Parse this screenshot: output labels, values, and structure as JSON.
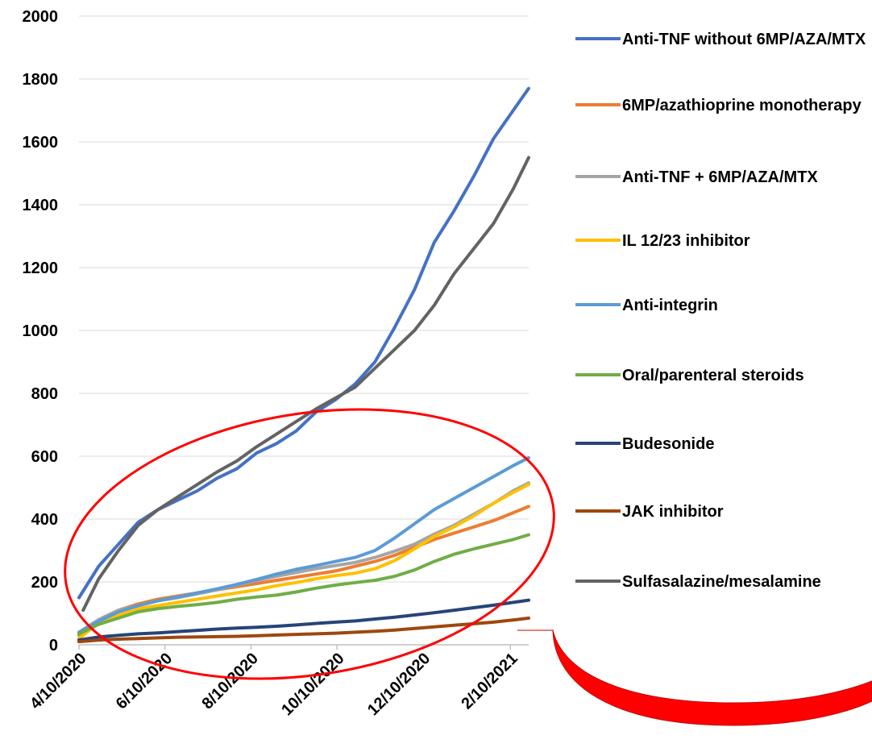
{
  "chart_data": {
    "type": "line",
    "title": "",
    "xlabel": "",
    "ylabel": "",
    "x_start": "2020-04-10",
    "x_end": "2021-02-23",
    "x_ticks": [
      "4/10/2020",
      "6/10/2020",
      "8/10/2020",
      "10/10/2020",
      "12/10/2020",
      "2/10/2021"
    ],
    "x_tick_dates": [
      "2020-04-10",
      "2020-06-10",
      "2020-08-10",
      "2020-10-10",
      "2020-12-10",
      "2021-02-10"
    ],
    "ylim": [
      0,
      2000
    ],
    "y_ticks": [
      "0",
      "200",
      "400",
      "600",
      "800",
      "1000",
      "1200",
      "1400",
      "1600",
      "1800",
      "2000"
    ],
    "y_tick_values": [
      0,
      200,
      400,
      600,
      800,
      1000,
      1200,
      1400,
      1600,
      1800,
      2000
    ],
    "grid": "horizontal",
    "legend_position": "right",
    "series": [
      {
        "name": "Anti-TNF without 6MP/AZA/MTX",
        "color": "#4472c4",
        "points": [
          [
            "2020-04-10",
            150
          ],
          [
            "2020-04-24",
            250
          ],
          [
            "2020-05-08",
            320
          ],
          [
            "2020-05-22",
            390
          ],
          [
            "2020-06-05",
            430
          ],
          [
            "2020-06-19",
            460
          ],
          [
            "2020-07-03",
            490
          ],
          [
            "2020-07-17",
            530
          ],
          [
            "2020-07-31",
            560
          ],
          [
            "2020-08-14",
            610
          ],
          [
            "2020-08-28",
            640
          ],
          [
            "2020-09-11",
            680
          ],
          [
            "2020-09-25",
            740
          ],
          [
            "2020-10-09",
            780
          ],
          [
            "2020-10-23",
            830
          ],
          [
            "2020-11-06",
            900
          ],
          [
            "2020-11-20",
            1010
          ],
          [
            "2020-12-04",
            1130
          ],
          [
            "2020-12-18",
            1280
          ],
          [
            "2021-01-01",
            1380
          ],
          [
            "2021-01-15",
            1490
          ],
          [
            "2021-01-29",
            1610
          ],
          [
            "2021-02-12",
            1700
          ],
          [
            "2021-02-23",
            1770
          ]
        ]
      },
      {
        "name": "6MP/azathioprine monotherapy",
        "color": "#ed7d31",
        "points": [
          [
            "2020-04-10",
            30
          ],
          [
            "2020-04-24",
            80
          ],
          [
            "2020-05-08",
            110
          ],
          [
            "2020-05-22",
            130
          ],
          [
            "2020-06-05",
            145
          ],
          [
            "2020-06-19",
            155
          ],
          [
            "2020-07-03",
            165
          ],
          [
            "2020-07-17",
            175
          ],
          [
            "2020-07-31",
            185
          ],
          [
            "2020-08-14",
            195
          ],
          [
            "2020-08-28",
            205
          ],
          [
            "2020-09-11",
            215
          ],
          [
            "2020-09-25",
            225
          ],
          [
            "2020-10-09",
            235
          ],
          [
            "2020-10-23",
            250
          ],
          [
            "2020-11-06",
            265
          ],
          [
            "2020-11-20",
            285
          ],
          [
            "2020-12-04",
            310
          ],
          [
            "2020-12-18",
            335
          ],
          [
            "2021-01-01",
            355
          ],
          [
            "2021-01-15",
            375
          ],
          [
            "2021-01-29",
            395
          ],
          [
            "2021-02-12",
            420
          ],
          [
            "2021-02-23",
            440
          ]
        ]
      },
      {
        "name": "Anti-TNF + 6MP/AZA/MTX",
        "color": "#a5a5a5",
        "points": [
          [
            "2020-04-10",
            40
          ],
          [
            "2020-04-24",
            80
          ],
          [
            "2020-05-08",
            110
          ],
          [
            "2020-05-22",
            125
          ],
          [
            "2020-06-05",
            140
          ],
          [
            "2020-06-19",
            150
          ],
          [
            "2020-07-03",
            162
          ],
          [
            "2020-07-17",
            175
          ],
          [
            "2020-07-31",
            190
          ],
          [
            "2020-08-14",
            205
          ],
          [
            "2020-08-28",
            218
          ],
          [
            "2020-09-11",
            230
          ],
          [
            "2020-09-25",
            242
          ],
          [
            "2020-10-09",
            252
          ],
          [
            "2020-10-23",
            262
          ],
          [
            "2020-11-06",
            278
          ],
          [
            "2020-11-20",
            298
          ],
          [
            "2020-12-04",
            320
          ],
          [
            "2020-12-18",
            352
          ],
          [
            "2021-01-01",
            380
          ],
          [
            "2021-01-15",
            415
          ],
          [
            "2021-01-29",
            450
          ],
          [
            "2021-02-12",
            490
          ],
          [
            "2021-02-23",
            515
          ]
        ]
      },
      {
        "name": "IL 12/23 inhibitor",
        "color": "#ffc000",
        "points": [
          [
            "2020-04-10",
            20
          ],
          [
            "2020-04-24",
            70
          ],
          [
            "2020-05-08",
            95
          ],
          [
            "2020-05-22",
            115
          ],
          [
            "2020-06-05",
            125
          ],
          [
            "2020-06-19",
            135
          ],
          [
            "2020-07-03",
            145
          ],
          [
            "2020-07-17",
            155
          ],
          [
            "2020-07-31",
            165
          ],
          [
            "2020-08-14",
            175
          ],
          [
            "2020-08-28",
            188
          ],
          [
            "2020-09-11",
            198
          ],
          [
            "2020-09-25",
            210
          ],
          [
            "2020-10-09",
            220
          ],
          [
            "2020-10-23",
            228
          ],
          [
            "2020-11-06",
            242
          ],
          [
            "2020-11-20",
            268
          ],
          [
            "2020-12-04",
            305
          ],
          [
            "2020-12-18",
            345
          ],
          [
            "2021-01-01",
            375
          ],
          [
            "2021-01-15",
            410
          ],
          [
            "2021-01-29",
            450
          ],
          [
            "2021-02-12",
            485
          ],
          [
            "2021-02-23",
            510
          ]
        ]
      },
      {
        "name": "Anti-integrin",
        "color": "#5b9bd5",
        "points": [
          [
            "2020-04-10",
            40
          ],
          [
            "2020-04-24",
            75
          ],
          [
            "2020-05-08",
            105
          ],
          [
            "2020-05-22",
            125
          ],
          [
            "2020-06-05",
            140
          ],
          [
            "2020-06-19",
            152
          ],
          [
            "2020-07-03",
            165
          ],
          [
            "2020-07-17",
            178
          ],
          [
            "2020-07-31",
            192
          ],
          [
            "2020-08-14",
            208
          ],
          [
            "2020-08-28",
            225
          ],
          [
            "2020-09-11",
            240
          ],
          [
            "2020-09-25",
            252
          ],
          [
            "2020-10-09",
            265
          ],
          [
            "2020-10-23",
            278
          ],
          [
            "2020-11-06",
            300
          ],
          [
            "2020-11-20",
            340
          ],
          [
            "2020-12-04",
            385
          ],
          [
            "2020-12-18",
            430
          ],
          [
            "2021-01-01",
            465
          ],
          [
            "2021-01-15",
            500
          ],
          [
            "2021-01-29",
            535
          ],
          [
            "2021-02-12",
            570
          ],
          [
            "2021-02-23",
            595
          ]
        ]
      },
      {
        "name": "Oral/parenteral steroids",
        "color": "#70ad47",
        "points": [
          [
            "2020-04-10",
            35
          ],
          [
            "2020-04-24",
            65
          ],
          [
            "2020-05-08",
            85
          ],
          [
            "2020-05-22",
            105
          ],
          [
            "2020-06-05",
            115
          ],
          [
            "2020-06-19",
            122
          ],
          [
            "2020-07-03",
            128
          ],
          [
            "2020-07-17",
            135
          ],
          [
            "2020-07-31",
            145
          ],
          [
            "2020-08-14",
            152
          ],
          [
            "2020-08-28",
            158
          ],
          [
            "2020-09-11",
            168
          ],
          [
            "2020-09-25",
            180
          ],
          [
            "2020-10-09",
            190
          ],
          [
            "2020-10-23",
            198
          ],
          [
            "2020-11-06",
            205
          ],
          [
            "2020-11-20",
            218
          ],
          [
            "2020-12-04",
            238
          ],
          [
            "2020-12-18",
            265
          ],
          [
            "2021-01-01",
            288
          ],
          [
            "2021-01-15",
            305
          ],
          [
            "2021-01-29",
            320
          ],
          [
            "2021-02-12",
            335
          ],
          [
            "2021-02-23",
            350
          ]
        ]
      },
      {
        "name": "Budesonide",
        "color": "#264478",
        "points": [
          [
            "2020-04-10",
            15
          ],
          [
            "2020-04-24",
            25
          ],
          [
            "2020-05-08",
            30
          ],
          [
            "2020-05-22",
            35
          ],
          [
            "2020-06-05",
            38
          ],
          [
            "2020-06-19",
            42
          ],
          [
            "2020-07-03",
            46
          ],
          [
            "2020-07-17",
            50
          ],
          [
            "2020-07-31",
            53
          ],
          [
            "2020-08-14",
            56
          ],
          [
            "2020-08-28",
            59
          ],
          [
            "2020-09-11",
            63
          ],
          [
            "2020-09-25",
            68
          ],
          [
            "2020-10-09",
            72
          ],
          [
            "2020-10-23",
            76
          ],
          [
            "2020-11-06",
            82
          ],
          [
            "2020-11-20",
            88
          ],
          [
            "2020-12-04",
            95
          ],
          [
            "2020-12-18",
            102
          ],
          [
            "2021-01-01",
            110
          ],
          [
            "2021-01-15",
            118
          ],
          [
            "2021-01-29",
            126
          ],
          [
            "2021-02-12",
            135
          ],
          [
            "2021-02-23",
            142
          ]
        ]
      },
      {
        "name": "JAK inhibitor",
        "color": "#9e480e",
        "points": [
          [
            "2020-04-10",
            10
          ],
          [
            "2020-04-24",
            15
          ],
          [
            "2020-05-08",
            18
          ],
          [
            "2020-05-22",
            20
          ],
          [
            "2020-06-05",
            22
          ],
          [
            "2020-06-19",
            24
          ],
          [
            "2020-07-03",
            25
          ],
          [
            "2020-07-17",
            26
          ],
          [
            "2020-07-31",
            27
          ],
          [
            "2020-08-14",
            29
          ],
          [
            "2020-08-28",
            31
          ],
          [
            "2020-09-11",
            33
          ],
          [
            "2020-09-25",
            35
          ],
          [
            "2020-10-09",
            37
          ],
          [
            "2020-10-23",
            40
          ],
          [
            "2020-11-06",
            43
          ],
          [
            "2020-11-20",
            47
          ],
          [
            "2020-12-04",
            52
          ],
          [
            "2020-12-18",
            57
          ],
          [
            "2021-01-01",
            62
          ],
          [
            "2021-01-15",
            67
          ],
          [
            "2021-01-29",
            72
          ],
          [
            "2021-02-12",
            79
          ],
          [
            "2021-02-23",
            85
          ]
        ]
      },
      {
        "name": "Sulfasalazine/mesalamine",
        "color": "#636363",
        "points": [
          [
            "2020-04-13",
            110
          ],
          [
            "2020-04-24",
            210
          ],
          [
            "2020-05-08",
            300
          ],
          [
            "2020-05-22",
            380
          ],
          [
            "2020-06-05",
            430
          ],
          [
            "2020-06-19",
            470
          ],
          [
            "2020-07-03",
            510
          ],
          [
            "2020-07-17",
            550
          ],
          [
            "2020-07-31",
            585
          ],
          [
            "2020-08-14",
            630
          ],
          [
            "2020-08-28",
            670
          ],
          [
            "2020-09-11",
            710
          ],
          [
            "2020-09-25",
            750
          ],
          [
            "2020-10-09",
            785
          ],
          [
            "2020-10-23",
            820
          ],
          [
            "2020-11-06",
            880
          ],
          [
            "2020-11-20",
            940
          ],
          [
            "2020-12-04",
            1000
          ],
          [
            "2020-12-18",
            1080
          ],
          [
            "2021-01-01",
            1180
          ],
          [
            "2021-01-15",
            1260
          ],
          [
            "2021-01-29",
            1340
          ],
          [
            "2021-02-12",
            1450
          ],
          [
            "2021-02-23",
            1550
          ]
        ]
      }
    ],
    "annotations": [
      {
        "shape": "ellipse",
        "color": "#ff0000",
        "encloses": "lower series cluster"
      },
      {
        "shape": "curved-arrow",
        "color": "#ff0000",
        "direction": "right"
      }
    ]
  }
}
